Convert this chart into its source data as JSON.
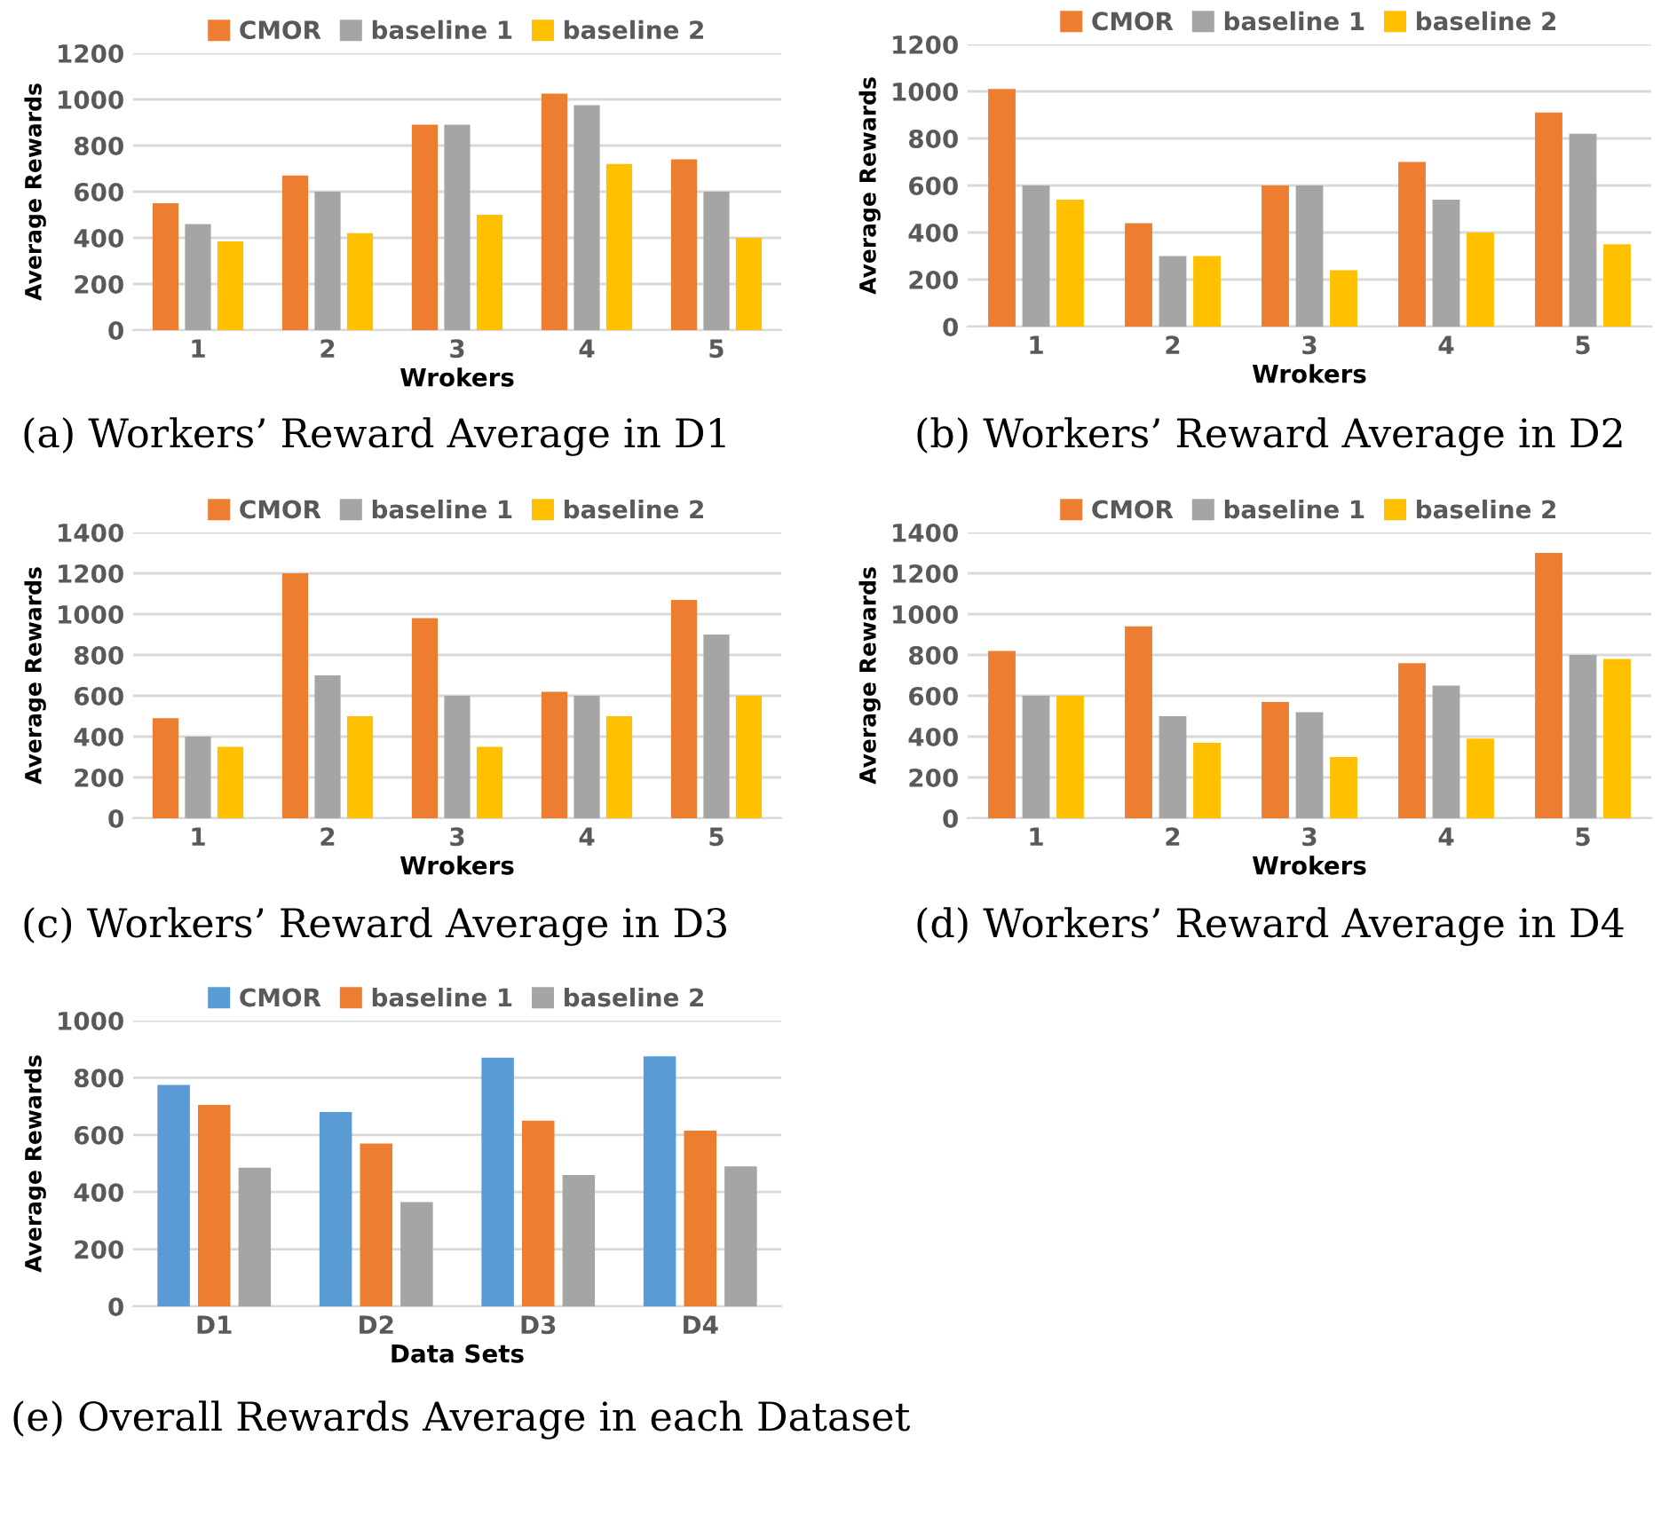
{
  "chart_data": [
    {
      "type": "bar",
      "xlabel": "Wrokers",
      "ylabel": "Average Rewards",
      "categories": [
        "1",
        "2",
        "3",
        "4",
        "5"
      ],
      "ylim": [
        0,
        1200
      ],
      "yticks": [
        0,
        200,
        400,
        600,
        800,
        1000,
        1200
      ],
      "grid": "y",
      "legend": "top",
      "annotations": [
        "(a) Workers’ Reward Average in D1"
      ],
      "series": [
        {
          "name": "CMOR",
          "color": "#ed7d31",
          "values": [
            550,
            670,
            890,
            1025,
            740
          ]
        },
        {
          "name": "baseline 1",
          "color": "#a5a5a5",
          "values": [
            460,
            600,
            890,
            975,
            600
          ]
        },
        {
          "name": "baseline 2",
          "color": "#ffc000",
          "values": [
            385,
            420,
            500,
            720,
            400
          ]
        }
      ]
    },
    {
      "type": "bar",
      "xlabel": "Wrokers",
      "ylabel": "Average Rewards",
      "categories": [
        "1",
        "2",
        "3",
        "4",
        "5"
      ],
      "ylim": [
        0,
        1200
      ],
      "yticks": [
        0,
        200,
        400,
        600,
        800,
        1000,
        1200
      ],
      "grid": "y",
      "legend": "top",
      "annotations": [
        "(b) Workers’ Reward Average in D2"
      ],
      "series": [
        {
          "name": "CMOR",
          "color": "#ed7d31",
          "values": [
            1010,
            440,
            600,
            700,
            910
          ]
        },
        {
          "name": "baseline 1",
          "color": "#a5a5a5",
          "values": [
            600,
            300,
            600,
            540,
            820
          ]
        },
        {
          "name": "baseline 2",
          "color": "#ffc000",
          "values": [
            540,
            300,
            240,
            400,
            350
          ]
        }
      ]
    },
    {
      "type": "bar",
      "xlabel": "Wrokers",
      "ylabel": "Average Rewards",
      "categories": [
        "1",
        "2",
        "3",
        "4",
        "5"
      ],
      "ylim": [
        0,
        1400
      ],
      "yticks": [
        0,
        200,
        400,
        600,
        800,
        1000,
        1200,
        1400
      ],
      "grid": "y",
      "legend": "top",
      "annotations": [
        "(c) Workers’ Reward Average in D3"
      ],
      "series": [
        {
          "name": "CMOR",
          "color": "#ed7d31",
          "values": [
            490,
            1200,
            980,
            620,
            1070
          ]
        },
        {
          "name": "baseline 1",
          "color": "#a5a5a5",
          "values": [
            400,
            700,
            600,
            600,
            900
          ]
        },
        {
          "name": "baseline 2",
          "color": "#ffc000",
          "values": [
            350,
            500,
            350,
            500,
            600
          ]
        }
      ]
    },
    {
      "type": "bar",
      "xlabel": "Wrokers",
      "ylabel": "Average Rewards",
      "categories": [
        "1",
        "2",
        "3",
        "4",
        "5"
      ],
      "ylim": [
        0,
        1400
      ],
      "yticks": [
        0,
        200,
        400,
        600,
        800,
        1000,
        1200,
        1400
      ],
      "grid": "y",
      "legend": "top",
      "annotations": [
        "(d) Workers’ Reward Average in D4"
      ],
      "series": [
        {
          "name": "CMOR",
          "color": "#ed7d31",
          "values": [
            820,
            940,
            570,
            760,
            1300
          ]
        },
        {
          "name": "baseline 1",
          "color": "#a5a5a5",
          "values": [
            600,
            500,
            520,
            650,
            800
          ]
        },
        {
          "name": "baseline 2",
          "color": "#ffc000",
          "values": [
            600,
            370,
            300,
            390,
            780
          ]
        }
      ]
    },
    {
      "type": "bar",
      "xlabel": "Data Sets",
      "ylabel": "Average Rewards",
      "categories": [
        "D1",
        "D2",
        "D3",
        "D4"
      ],
      "ylim": [
        0,
        1000
      ],
      "yticks": [
        0,
        200,
        400,
        600,
        800,
        1000
      ],
      "grid": "y",
      "legend": "top",
      "annotations": [
        "(e) Overall Rewards Average in each Dataset"
      ],
      "series": [
        {
          "name": "CMOR",
          "color": "#5b9bd5",
          "values": [
            775,
            680,
            870,
            875
          ]
        },
        {
          "name": "baseline 1",
          "color": "#ed7d31",
          "values": [
            705,
            570,
            650,
            615
          ]
        },
        {
          "name": "baseline 2",
          "color": "#a5a5a5",
          "values": [
            485,
            365,
            460,
            490
          ]
        }
      ]
    }
  ]
}
